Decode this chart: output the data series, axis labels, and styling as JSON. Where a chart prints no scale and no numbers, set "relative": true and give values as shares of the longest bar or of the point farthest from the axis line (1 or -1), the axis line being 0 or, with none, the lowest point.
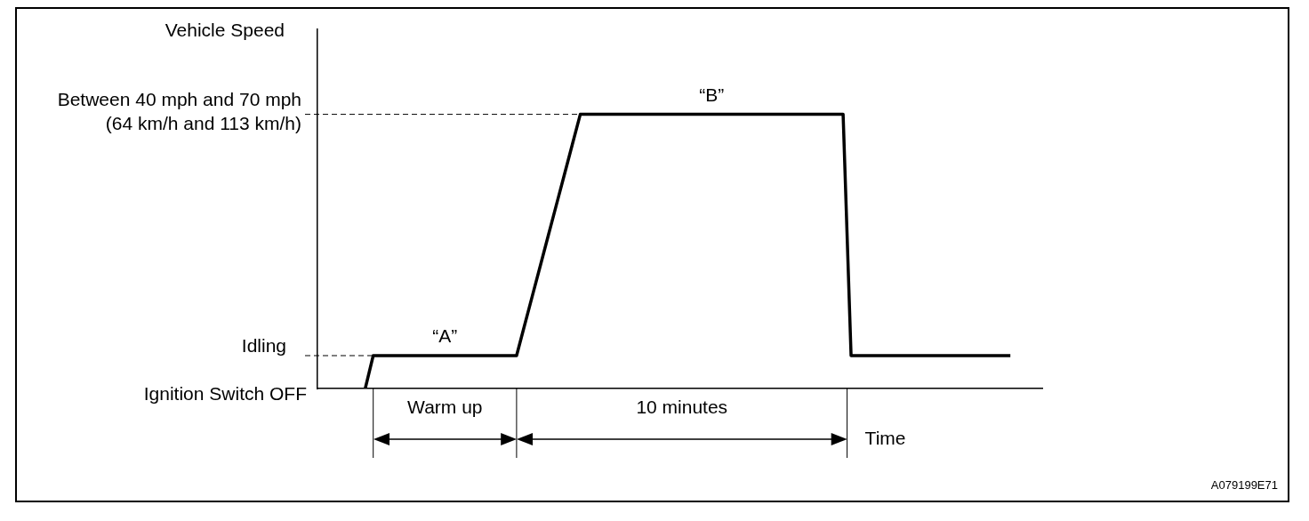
{
  "chart_data": {
    "type": "line",
    "ylabel": "Vehicle Speed",
    "xlabel": "Time",
    "categories": [
      null,
      null,
      null,
      null,
      null,
      null,
      null,
      null,
      null,
      null,
      null,
      null,
      null,
      null,
      null,
      null,
      null,
      null,
      null,
      null,
      null,
      null,
      null,
      null,
      null,
      null,
      null,
      null,
      null,
      null,
      null,
      null,
      null,
      null,
      null,
      null,
      null,
      null,
      null,
      null,
      null,
      null,
      null,
      null,
      null,
      null,
      null,
      null,
      null,
      null,
      null,
      null,
      null,
      null,
      null,
      null,
      null,
      null,
      null,
      null,
      null,
      null,
      null,
      null,
      null,
      null,
      null,
      null,
      null,
      null,
      null,
      null,
      null,
      null,
      null,
      null,
      null,
      null,
      null,
      null,
      null,
      null,
      null,
      null,
      null,
      null,
      null,
      null,
      null,
      null,
      null,
      null
    ],
    "series": [
      {
        "color": "#000000",
        "values": [
          null,
          null,
          null,
          null,
          null,
          null,
          0,
          0.12,
          0.12,
          0.12,
          0.12,
          0.12,
          0.12,
          0.12,
          0.12,
          0.12,
          0.12,
          0.12,
          0.12,
          0.12,
          0.12,
          0.12,
          0.12,
          0.12,
          0.12,
          0.12,
          0.23,
          0.34,
          0.45,
          0.56,
          0.67,
          0.78,
          0.89,
          1,
          1,
          1,
          1,
          1,
          1,
          1,
          1,
          1,
          1,
          1,
          1,
          1,
          1,
          1,
          1,
          1,
          1,
          1,
          1,
          1,
          1,
          1,
          1,
          1,
          1,
          1,
          1,
          1,
          1,
          1,
          1,
          1,
          1,
          0.12,
          0.12,
          0.12,
          0.12,
          0.12,
          0.12,
          0.12,
          0.12,
          0.12,
          0.12,
          0.12,
          0.12,
          0.12,
          0.12,
          0.12,
          0.12,
          0.12,
          0.12,
          0.12,
          0.12,
          0.12,
          null,
          null,
          null,
          null
        ]
      }
    ],
    "relative": true,
    "ref_lines": [
      {
        "axis": "y",
        "value": 0,
        "label": "Ignition Switch OFF",
        "line_style": "solid"
      },
      {
        "axis": "y",
        "value": 0.12,
        "label": "Idling",
        "line_style": "dashed"
      },
      {
        "axis": "y",
        "value": 1,
        "label": "Between 40 mph and 70 mph (64 km/h and 113 km/h)",
        "line_style": "dashed"
      }
    ],
    "annotations": [
      {
        "text": "“A”",
        "y": 0.12
      },
      {
        "text": "“B”",
        "y": 1
      },
      "Warm up",
      "10 minutes",
      "A079199E71"
    ],
    "line_style": "solid"
  }
}
